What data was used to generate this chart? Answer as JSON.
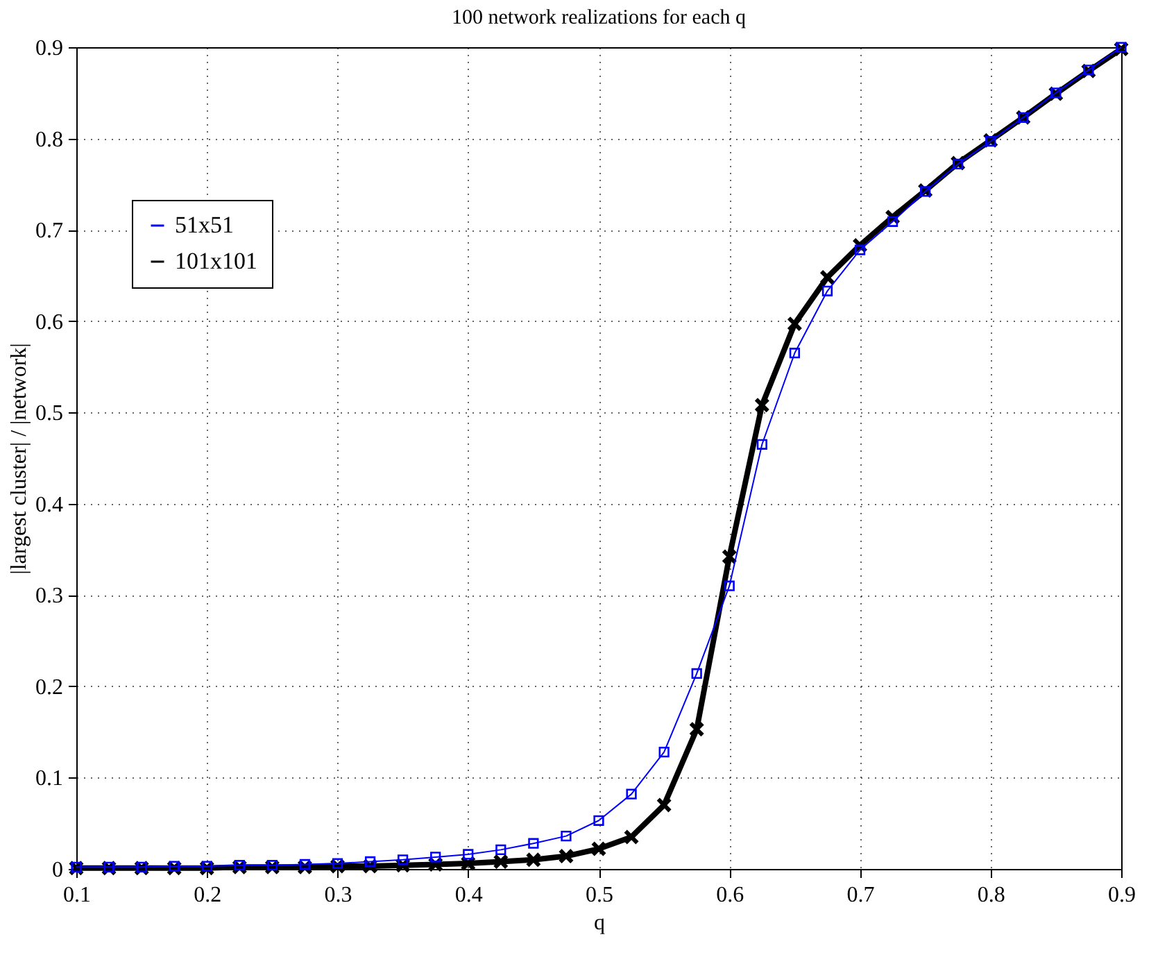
{
  "chart_data": {
    "type": "line",
    "title": "100 network realizations for each q",
    "xlabel": "q",
    "ylabel": "|largest cluster| / |network|",
    "x": [
      0.1,
      0.125,
      0.15,
      0.175,
      0.2,
      0.225,
      0.25,
      0.275,
      0.3,
      0.325,
      0.35,
      0.375,
      0.4,
      0.425,
      0.45,
      0.475,
      0.5,
      0.525,
      0.55,
      0.575,
      0.6,
      0.625,
      0.65,
      0.675,
      0.7,
      0.725,
      0.75,
      0.775,
      0.8,
      0.825,
      0.85,
      0.875,
      0.9
    ],
    "series": [
      {
        "name": "51x51",
        "color": "#0000ff",
        "marker": "square",
        "values": [
          0.002,
          0.002,
          0.002,
          0.003,
          0.003,
          0.004,
          0.004,
          0.005,
          0.006,
          0.008,
          0.01,
          0.013,
          0.016,
          0.021,
          0.028,
          0.036,
          0.053,
          0.082,
          0.128,
          0.214,
          0.31,
          0.465,
          0.565,
          0.633,
          0.678,
          0.709,
          0.742,
          0.772,
          0.797,
          0.823,
          0.85,
          0.875,
          0.9
        ]
      },
      {
        "name": "101x101",
        "color": "#000000",
        "marker": "cross",
        "values": [
          0.001,
          0.001,
          0.001,
          0.001,
          0.001,
          0.002,
          0.002,
          0.002,
          0.003,
          0.003,
          0.004,
          0.005,
          0.006,
          0.008,
          0.01,
          0.014,
          0.022,
          0.035,
          0.07,
          0.153,
          0.342,
          0.508,
          0.597,
          0.648,
          0.683,
          0.714,
          0.743,
          0.773,
          0.798,
          0.823,
          0.849,
          0.874,
          0.898
        ]
      }
    ],
    "xlim": [
      0.1,
      0.9
    ],
    "xticks": [
      0.1,
      0.2,
      0.3,
      0.4,
      0.5,
      0.6,
      0.7,
      0.8,
      0.9
    ],
    "ylim": [
      0,
      0.9
    ],
    "yticks": [
      0,
      0.1,
      0.2,
      0.3,
      0.4,
      0.5,
      0.6,
      0.7,
      0.8,
      0.9
    ],
    "grid": true,
    "legend": "top left",
    "line_style": "solid"
  }
}
